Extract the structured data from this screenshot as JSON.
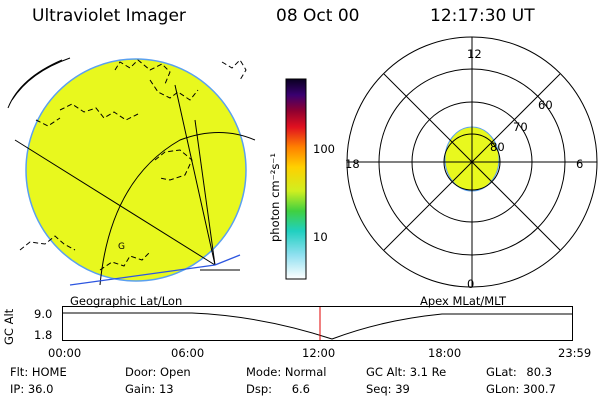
{
  "header": {
    "instrument": "Ultraviolet Imager",
    "date": "08 Oct 00",
    "time": "12:17:30 UT"
  },
  "colors": {
    "oval_fill": "#e8f81e",
    "limb": "#5aa0f0",
    "blue_line": "#2d56e0",
    "marker": "#e00000"
  },
  "geo_panel": {
    "label": "Geographic Lat/Lon",
    "cursor_label": "G"
  },
  "colorbar": {
    "unit": "photon cm⁻²s⁻¹",
    "ticks": [
      "100",
      "10"
    ],
    "tick_values": [
      100,
      10
    ]
  },
  "polar_panel": {
    "label": "Apex MLat/MLT",
    "mlt_labels": {
      "top": "12",
      "left": "18",
      "right": "6",
      "bottom": "0"
    },
    "lat_labels": [
      "60",
      "70",
      "80"
    ]
  },
  "altitude_plot": {
    "axis_label": "GC Alt",
    "ytick_top": "9.0",
    "ytick_bottom": "1.8",
    "xticks": [
      "00:00",
      "06:00",
      "12:00",
      "18:00",
      "23:59"
    ]
  },
  "status": {
    "row1": [
      {
        "label": "Flt:",
        "value": "HOME"
      },
      {
        "label": "Door:",
        "value": "Open"
      },
      {
        "label": "Mode:",
        "value": "Normal"
      },
      {
        "label": "GC Alt:",
        "value": "3.1 Re"
      },
      {
        "label": "GLat:",
        "value": "80.3"
      }
    ],
    "row2": [
      {
        "label": "IP:",
        "value": "36.0"
      },
      {
        "label": "Gain:",
        "value": "13"
      },
      {
        "label": "Dsp:",
        "value": "6.6"
      },
      {
        "label": "Seq:",
        "value": "39"
      },
      {
        "label": "GLon:",
        "value": "300.7"
      }
    ]
  }
}
